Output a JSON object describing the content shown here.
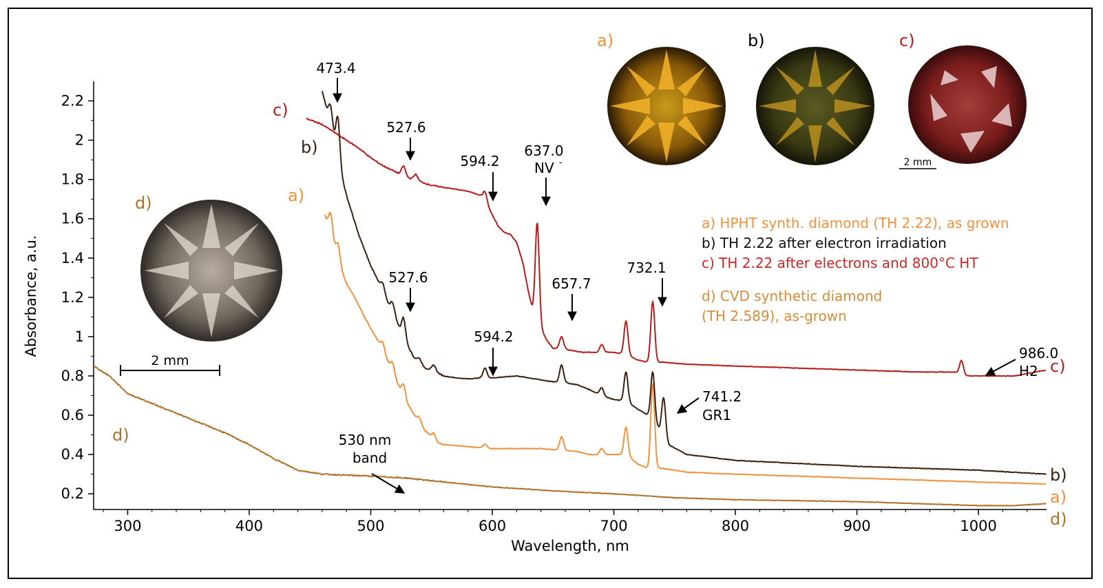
{
  "chart_data": {
    "type": "line",
    "title": "",
    "xlabel": "Wavelength, nm",
    "ylabel": "Absorbance, a.u.",
    "xlim": [
      272,
      1056
    ],
    "ylim": [
      0.12,
      2.3
    ],
    "xticks": [
      "300",
      "400",
      "500",
      "600",
      "700",
      "800",
      "900",
      "1000"
    ],
    "yticks": [
      "0.2",
      "0.4",
      "0.6",
      "0.8",
      "1",
      "1.2",
      "1.4",
      "1.6",
      "1.8",
      "2",
      "2.2"
    ],
    "grid": false,
    "legend_position": "right",
    "legend": [
      "a) HPHT synth. diamond (TH 2.22), as grown",
      "b) TH 2.22 after electron irradiation",
      "c) TH 2.22 after electrons and 800°C HT",
      "d) CVD synthetic diamond",
      "(TH 2.589), as-grown"
    ],
    "series": [
      {
        "label": "a)",
        "color": "#f0913e",
        "points": [
          [
            462,
            1.62
          ],
          [
            468,
            1.52
          ],
          [
            472,
            1.4
          ],
          [
            476,
            1.34
          ],
          [
            480,
            1.27
          ],
          [
            485,
            1.22
          ],
          [
            490,
            1.16
          ],
          [
            495,
            1.1
          ],
          [
            500,
            1.04
          ],
          [
            505,
            0.99
          ],
          [
            510,
            0.92
          ],
          [
            515,
            0.86
          ],
          [
            520,
            0.79
          ],
          [
            525,
            0.72
          ],
          [
            530,
            0.66
          ],
          [
            535,
            0.61
          ],
          [
            540,
            0.56
          ],
          [
            545,
            0.52
          ],
          [
            550,
            0.49
          ],
          [
            555,
            0.46
          ],
          [
            560,
            0.45
          ],
          [
            570,
            0.445
          ],
          [
            580,
            0.44
          ],
          [
            590,
            0.435
          ],
          [
            600,
            0.43
          ],
          [
            620,
            0.43
          ],
          [
            640,
            0.43
          ],
          [
            650,
            0.425
          ],
          [
            660,
            0.42
          ],
          [
            670,
            0.415
          ],
          [
            680,
            0.4
          ],
          [
            690,
            0.4
          ],
          [
            700,
            0.4
          ],
          [
            710,
            0.4
          ],
          [
            720,
            0.35
          ],
          [
            728,
            0.33
          ],
          [
            740,
            0.33
          ],
          [
            760,
            0.31
          ],
          [
            800,
            0.3
          ],
          [
            850,
            0.29
          ],
          [
            900,
            0.28
          ],
          [
            950,
            0.27
          ],
          [
            1000,
            0.26
          ],
          [
            1056,
            0.25
          ]
        ],
        "peaks": [
          [
            467,
            1.72,
            0.09
          ],
          [
            473,
            1.62,
            0.09
          ],
          [
            510,
            1.0,
            0.05
          ],
          [
            518,
            0.82,
            0.05
          ],
          [
            527,
            0.9,
            0.06
          ],
          [
            540,
            0.62,
            0.03
          ],
          [
            552,
            0.51,
            0.03
          ],
          [
            594,
            0.48,
            0.02
          ],
          [
            657,
            0.51,
            0.07
          ],
          [
            690,
            0.42,
            0.03
          ],
          [
            710,
            0.54,
            0.14
          ],
          [
            732,
            0.77,
            0.43
          ]
        ]
      },
      {
        "label": "b)",
        "color": "#3a2010",
        "points": [
          [
            460,
            2.25
          ],
          [
            464,
            2.15
          ],
          [
            468,
            2.05
          ],
          [
            472,
            1.95
          ],
          [
            476,
            1.82
          ],
          [
            480,
            1.72
          ],
          [
            485,
            1.62
          ],
          [
            490,
            1.52
          ],
          [
            495,
            1.44
          ],
          [
            500,
            1.36
          ],
          [
            505,
            1.3
          ],
          [
            510,
            1.22
          ],
          [
            515,
            1.16
          ],
          [
            520,
            1.1
          ],
          [
            525,
            1.02
          ],
          [
            530,
            0.96
          ],
          [
            535,
            0.9
          ],
          [
            540,
            0.86
          ],
          [
            545,
            0.84
          ],
          [
            550,
            0.83
          ],
          [
            560,
            0.8
          ],
          [
            570,
            0.79
          ],
          [
            580,
            0.785
          ],
          [
            590,
            0.79
          ],
          [
            600,
            0.79
          ],
          [
            610,
            0.795
          ],
          [
            620,
            0.8
          ],
          [
            630,
            0.79
          ],
          [
            640,
            0.78
          ],
          [
            650,
            0.77
          ],
          [
            660,
            0.765
          ],
          [
            670,
            0.755
          ],
          [
            680,
            0.73
          ],
          [
            690,
            0.7
          ],
          [
            700,
            0.68
          ],
          [
            710,
            0.67
          ],
          [
            720,
            0.63
          ],
          [
            728,
            0.6
          ],
          [
            735,
            0.55
          ],
          [
            745,
            0.45
          ],
          [
            760,
            0.4
          ],
          [
            800,
            0.37
          ],
          [
            850,
            0.355
          ],
          [
            900,
            0.34
          ],
          [
            950,
            0.33
          ],
          [
            1000,
            0.32
          ],
          [
            1056,
            0.3
          ]
        ],
        "peaks": [
          [
            467,
            2.15,
            0.1
          ],
          [
            473,
            2.1,
            0.2
          ],
          [
            510,
            1.27,
            0.05
          ],
          [
            518,
            1.17,
            0.05
          ],
          [
            527,
            1.1,
            0.1
          ],
          [
            540,
            0.9,
            0.03
          ],
          [
            552,
            0.86,
            0.03
          ],
          [
            594,
            0.8,
            0.05
          ],
          [
            657,
            0.81,
            0.09
          ],
          [
            690,
            0.73,
            0.04
          ],
          [
            710,
            0.81,
            0.15
          ],
          [
            732,
            0.83,
            0.25
          ],
          [
            741,
            0.55,
            0.2
          ]
        ]
      },
      {
        "label": "c)",
        "color": "#b71c1c",
        "points": [
          [
            447,
            2.11
          ],
          [
            460,
            2.08
          ],
          [
            470,
            2.04
          ],
          [
            480,
            2.0
          ],
          [
            490,
            1.96
          ],
          [
            500,
            1.91
          ],
          [
            510,
            1.87
          ],
          [
            520,
            1.84
          ],
          [
            530,
            1.81
          ],
          [
            540,
            1.79
          ],
          [
            550,
            1.77
          ],
          [
            560,
            1.76
          ],
          [
            570,
            1.75
          ],
          [
            580,
            1.74
          ],
          [
            590,
            1.72
          ],
          [
            595,
            1.68
          ],
          [
            600,
            1.62
          ],
          [
            605,
            1.56
          ],
          [
            610,
            1.53
          ],
          [
            615,
            1.52
          ],
          [
            620,
            1.48
          ],
          [
            625,
            1.38
          ],
          [
            630,
            1.22
          ],
          [
            633,
            1.14
          ],
          [
            640,
            1.04
          ],
          [
            645,
            0.98
          ],
          [
            650,
            0.94
          ],
          [
            657,
            0.94
          ],
          [
            665,
            0.93
          ],
          [
            675,
            0.92
          ],
          [
            685,
            0.92
          ],
          [
            700,
            0.92
          ],
          [
            710,
            0.91
          ],
          [
            720,
            0.88
          ],
          [
            728,
            0.87
          ],
          [
            740,
            0.87
          ],
          [
            760,
            0.86
          ],
          [
            800,
            0.85
          ],
          [
            850,
            0.84
          ],
          [
            900,
            0.83
          ],
          [
            950,
            0.82
          ],
          [
            980,
            0.82
          ],
          [
            990,
            0.8
          ],
          [
            1000,
            0.8
          ],
          [
            1030,
            0.8
          ],
          [
            1056,
            0.83
          ]
        ],
        "peaks": [
          [
            527,
            1.88,
            0.05
          ],
          [
            537,
            1.85,
            0.03
          ],
          [
            594,
            1.72,
            0.05
          ],
          [
            637,
            1.66,
            0.5
          ],
          [
            657,
            1.0,
            0.06
          ],
          [
            690,
            0.96,
            0.04
          ],
          [
            710,
            1.08,
            0.17
          ],
          [
            732,
            1.18,
            0.31
          ],
          [
            986,
            0.87,
            0.07
          ]
        ]
      },
      {
        "label": "d)",
        "color": "#b07028",
        "points": [
          [
            272,
            0.85
          ],
          [
            285,
            0.8
          ],
          [
            300,
            0.71
          ],
          [
            320,
            0.66
          ],
          [
            340,
            0.61
          ],
          [
            360,
            0.56
          ],
          [
            380,
            0.51
          ],
          [
            400,
            0.45
          ],
          [
            420,
            0.38
          ],
          [
            440,
            0.32
          ],
          [
            460,
            0.3
          ],
          [
            480,
            0.295
          ],
          [
            500,
            0.29
          ],
          [
            530,
            0.28
          ],
          [
            560,
            0.26
          ],
          [
            600,
            0.235
          ],
          [
            650,
            0.215
          ],
          [
            700,
            0.2
          ],
          [
            750,
            0.18
          ],
          [
            800,
            0.17
          ],
          [
            850,
            0.165
          ],
          [
            900,
            0.16
          ],
          [
            950,
            0.15
          ],
          [
            1000,
            0.14
          ],
          [
            1030,
            0.14
          ],
          [
            1056,
            0.15
          ]
        ],
        "peaks": []
      }
    ],
    "annotations": [
      {
        "text": "473.4",
        "x": 473
      },
      {
        "text": "527.6",
        "x": 527
      },
      {
        "text": "594.2",
        "x": 594
      },
      {
        "text": "637.0",
        "x": 637
      },
      {
        "text": "NV",
        "x": 637
      },
      {
        "text": "527.6",
        "x": 527
      },
      {
        "text": "657.7",
        "x": 657
      },
      {
        "text": "732.1",
        "x": 732
      },
      {
        "text": "594.2",
        "x": 594
      },
      {
        "text": "741.2",
        "x": 741
      },
      {
        "text": "GR1",
        "x": 741
      },
      {
        "text": "986.0",
        "x": 986
      },
      {
        "text": "H2",
        "x": 986
      },
      {
        "text": "530 nm",
        "x": 530
      },
      {
        "text": "band",
        "x": 530
      }
    ],
    "curve_labels": {
      "c_left": "c)",
      "b_left": "b)",
      "a_left": "a)",
      "d_left": "d)",
      "c_right": "c)",
      "b_right": "b)",
      "a_right": "a)",
      "d_right": "d)"
    }
  },
  "insets": {
    "photo_labels": [
      "a)",
      "b)",
      "c)",
      "d)"
    ],
    "scale_small": "2 mm",
    "scale_large": "2 mm"
  },
  "colors": {
    "a": "#f0913e",
    "b": "#3a2010",
    "c": "#b71c1c",
    "d": "#b07028",
    "legend_a": "#f0913e",
    "legend_b": "#111111",
    "legend_c": "#c62828",
    "legend_d": "#d98a3a"
  }
}
